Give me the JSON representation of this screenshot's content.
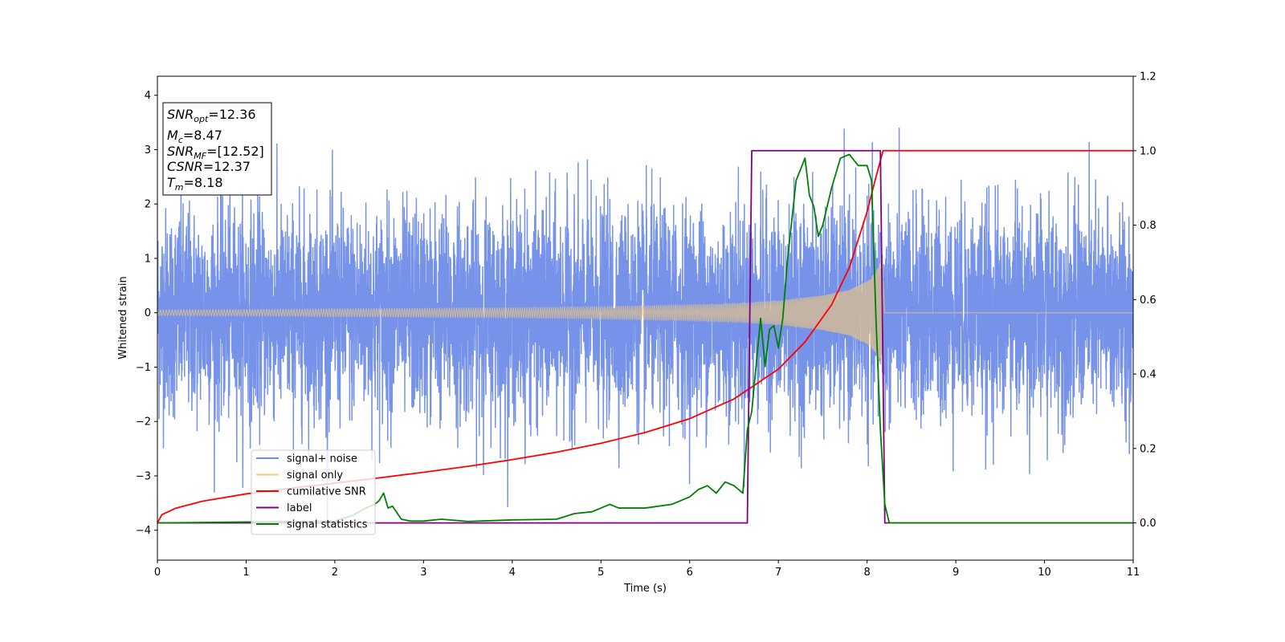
{
  "chart_data": {
    "type": "line",
    "xlabel": "Time (s)",
    "ylabel": "Whitened strain",
    "xlim": [
      0,
      11
    ],
    "ylim": [
      -4.55,
      4.35
    ],
    "y2lim": [
      -0.1,
      1.2
    ],
    "x_ticks": [
      "0",
      "1",
      "2",
      "3",
      "4",
      "5",
      "6",
      "7",
      "8",
      "9",
      "10",
      "11"
    ],
    "y_ticks": [
      "−4",
      "−3",
      "−2",
      "−1",
      "0",
      "1",
      "2",
      "3",
      "4"
    ],
    "y2_ticks": [
      "0.0",
      "0.2",
      "0.4",
      "0.6",
      "0.8",
      "1.0",
      "1.2"
    ],
    "legend_position": "lower-left",
    "info_box": {
      "position": "top-left",
      "lines": [
        {
          "sym": "SNR",
          "sub": "opt",
          "val": "=12.36"
        },
        {
          "sym": "M",
          "sub": "c",
          "val": "=8.47"
        },
        {
          "sym": "SNR",
          "sub": "MF",
          "val": "=[12.52]"
        },
        {
          "sym": "CSNR",
          "sub": "",
          "val": "=12.37"
        },
        {
          "sym": "T",
          "sub": "m",
          "val": "=8.18"
        }
      ]
    },
    "series": [
      {
        "name": "signal+ noise",
        "color": "#6f8de8",
        "axis": "left",
        "kind": "noise",
        "sigma": 0.95,
        "x_range": [
          0,
          11
        ]
      },
      {
        "name": "signal only",
        "color": "#f7c97a",
        "axis": "left",
        "kind": "chirp",
        "merger_time": 8.18,
        "envelope": {
          "x": [
            0,
            1,
            2,
            3,
            4,
            5,
            6,
            6.5,
            7,
            7.5,
            7.8,
            8.0,
            8.1,
            8.15,
            8.18
          ],
          "amp": [
            0.05,
            0.06,
            0.07,
            0.08,
            0.09,
            0.11,
            0.14,
            0.17,
            0.22,
            0.32,
            0.42,
            0.58,
            0.75,
            0.95,
            1.1
          ]
        }
      },
      {
        "name": "cumilative SNR",
        "color": "#ff0000",
        "axis": "right",
        "x": [
          0,
          0.05,
          0.2,
          0.5,
          1,
          1.5,
          2,
          2.5,
          3,
          3.5,
          4,
          4.5,
          5,
          5.5,
          6,
          6.5,
          7,
          7.3,
          7.6,
          7.8,
          8.0,
          8.1,
          8.18,
          8.2,
          11
        ],
        "y": [
          0.0,
          0.022,
          0.039,
          0.058,
          0.078,
          0.093,
          0.107,
          0.121,
          0.136,
          0.152,
          0.17,
          0.19,
          0.214,
          0.243,
          0.28,
          0.333,
          0.413,
          0.486,
          0.586,
          0.686,
          0.836,
          0.929,
          1.0,
          1.0,
          1.0
        ]
      },
      {
        "name": "label",
        "color": "#800080",
        "axis": "right",
        "x": [
          0,
          6.65,
          6.7,
          8.15,
          8.2,
          11
        ],
        "y": [
          0,
          0,
          1,
          1,
          0,
          0
        ]
      },
      {
        "name": "signal statistics",
        "color": "#008000",
        "axis": "right",
        "x": [
          0,
          2.0,
          2.2,
          2.35,
          2.45,
          2.5,
          2.55,
          2.6,
          2.65,
          2.75,
          2.85,
          3.0,
          3.2,
          3.5,
          4.0,
          4.5,
          4.7,
          4.9,
          5.0,
          5.1,
          5.2,
          5.3,
          5.5,
          5.8,
          6.0,
          6.1,
          6.2,
          6.3,
          6.4,
          6.5,
          6.6,
          6.65,
          6.7,
          6.8,
          6.85,
          6.9,
          6.95,
          7.0,
          7.05,
          7.1,
          7.2,
          7.3,
          7.35,
          7.4,
          7.45,
          7.5,
          7.6,
          7.7,
          7.8,
          7.9,
          8.0,
          8.05,
          8.1,
          8.15,
          8.2,
          8.25,
          8.3,
          8.5,
          11
        ],
        "y": [
          0.0,
          0.005,
          0.02,
          0.04,
          0.05,
          0.06,
          0.08,
          0.04,
          0.045,
          0.01,
          0.005,
          0.005,
          0.01,
          0.004,
          0.008,
          0.01,
          0.025,
          0.03,
          0.04,
          0.05,
          0.04,
          0.04,
          0.04,
          0.05,
          0.07,
          0.09,
          0.1,
          0.08,
          0.11,
          0.1,
          0.08,
          0.25,
          0.3,
          0.55,
          0.42,
          0.52,
          0.53,
          0.47,
          0.55,
          0.7,
          0.92,
          0.98,
          0.88,
          0.85,
          0.77,
          0.8,
          0.9,
          0.98,
          0.99,
          0.96,
          0.96,
          0.92,
          0.55,
          0.25,
          0.05,
          0.0,
          0.0,
          0.0,
          0.0
        ]
      }
    ]
  }
}
